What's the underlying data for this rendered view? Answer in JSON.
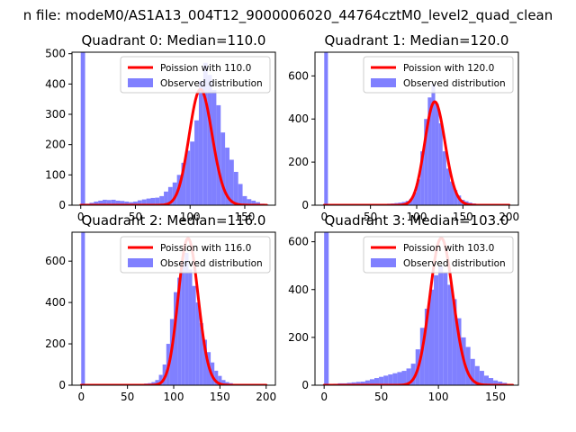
{
  "figure": {
    "suptitle": "n file: modeM0/AS1A13_004T12_9000006020_44764cztM0_level2_quad_clean"
  },
  "chart_data": [
    {
      "type": "bar+line",
      "title": "Quadrant 0: Median=110.0",
      "xlim": [
        -8,
        178
      ],
      "ylim": [
        0,
        505
      ],
      "xticks": [
        0,
        50,
        100,
        150
      ],
      "yticks": [
        0,
        100,
        200,
        300,
        400,
        500
      ],
      "legend": {
        "placement": "top-right",
        "entries": [
          "Poission with 110.0",
          "Observed distribution"
        ]
      },
      "line": {
        "name": "Poission with 110.0",
        "color": "#ff0000",
        "mean": 110.0,
        "peak": 382,
        "x_range": [
          0,
          170
        ]
      },
      "hist": {
        "name": "Observed distribution",
        "color": "#8080ff",
        "edges": [
          0,
          4,
          8,
          12,
          16,
          20,
          24,
          28,
          32,
          36,
          40,
          44,
          48,
          52,
          56,
          60,
          64,
          68,
          72,
          76,
          80,
          84,
          88,
          92,
          96,
          100,
          104,
          108,
          112,
          116,
          120,
          124,
          128,
          132,
          136,
          140,
          144,
          148,
          152,
          156,
          160,
          164,
          168,
          172
        ],
        "counts": [
          505,
          5,
          8,
          12,
          15,
          18,
          17,
          18,
          15,
          14,
          12,
          10,
          12,
          16,
          19,
          22,
          24,
          25,
          30,
          45,
          60,
          75,
          100,
          140,
          180,
          210,
          280,
          410,
          470,
          430,
          380,
          330,
          240,
          190,
          150,
          110,
          70,
          30,
          20,
          15,
          10,
          5,
          2
        ]
      }
    },
    {
      "type": "bar+line",
      "title": "Quadrant 1: Median=120.0",
      "xlim": [
        -10,
        210
      ],
      "ylim": [
        0,
        710
      ],
      "xticks": [
        0,
        50,
        100,
        150,
        200
      ],
      "yticks": [
        0,
        200,
        400,
        600
      ],
      "legend": {
        "placement": "top-right",
        "entries": [
          "Poission with 120.0",
          "Observed distribution"
        ]
      },
      "line": {
        "name": "Poission with 120.0",
        "color": "#ff0000",
        "mean": 120.0,
        "peak": 480,
        "x_range": [
          0,
          200
        ]
      },
      "hist": {
        "name": "Observed distribution",
        "color": "#8080ff",
        "edges": [
          0,
          4,
          8,
          12,
          16,
          20,
          24,
          28,
          32,
          36,
          40,
          44,
          48,
          52,
          56,
          60,
          64,
          68,
          72,
          76,
          80,
          84,
          88,
          92,
          96,
          100,
          104,
          108,
          112,
          116,
          120,
          124,
          128,
          132,
          136,
          140,
          144,
          148,
          152,
          156,
          160,
          164,
          168,
          172,
          176,
          180,
          184,
          188,
          192,
          196,
          200
        ],
        "counts": [
          710,
          3,
          3,
          3,
          3,
          3,
          3,
          3,
          3,
          3,
          3,
          3,
          4,
          4,
          5,
          5,
          6,
          7,
          8,
          10,
          12,
          15,
          20,
          30,
          60,
          120,
          250,
          400,
          500,
          560,
          470,
          380,
          250,
          170,
          110,
          70,
          45,
          25,
          18,
          12,
          8,
          6,
          5,
          4,
          3,
          3,
          3,
          3,
          3,
          3
        ]
      }
    },
    {
      "type": "bar+line",
      "title": "Quadrant 2: Median=116.0",
      "xlim": [
        -10,
        210
      ],
      "ylim": [
        0,
        740
      ],
      "xticks": [
        0,
        50,
        100,
        150,
        200
      ],
      "yticks": [
        0,
        200,
        400,
        600
      ],
      "legend": {
        "placement": "top-right",
        "entries": [
          "Poission with 116.0",
          "Observed distribution"
        ]
      },
      "line": {
        "name": "Poission with 116.0",
        "color": "#ff0000",
        "mean": 116.0,
        "peak": 710,
        "x_range": [
          0,
          200
        ]
      },
      "hist": {
        "name": "Observed distribution",
        "color": "#8080ff",
        "edges": [
          0,
          4,
          8,
          12,
          16,
          20,
          24,
          28,
          32,
          36,
          40,
          44,
          48,
          52,
          56,
          60,
          64,
          68,
          72,
          76,
          80,
          84,
          88,
          92,
          96,
          100,
          104,
          108,
          112,
          116,
          120,
          124,
          128,
          132,
          136,
          140,
          144,
          148,
          152,
          156,
          160,
          164,
          168,
          172,
          176,
          180,
          184,
          188,
          192,
          196,
          200
        ],
        "counts": [
          740,
          3,
          3,
          3,
          3,
          3,
          3,
          3,
          3,
          3,
          3,
          3,
          3,
          3,
          4,
          5,
          6,
          8,
          10,
          15,
          25,
          50,
          100,
          200,
          320,
          450,
          520,
          600,
          640,
          560,
          480,
          400,
          300,
          220,
          160,
          110,
          70,
          45,
          25,
          15,
          10,
          6,
          4,
          3,
          3,
          3,
          3,
          3,
          3,
          3
        ]
      }
    },
    {
      "type": "bar+line",
      "title": "Quadrant 3: Median=103.0",
      "xlim": [
        -8,
        170
      ],
      "ylim": [
        0,
        640
      ],
      "xticks": [
        0,
        50,
        100,
        150
      ],
      "yticks": [
        0,
        200,
        400,
        600
      ],
      "legend": {
        "placement": "top-right",
        "entries": [
          "Poission with 103.0",
          "Observed distribution"
        ]
      },
      "line": {
        "name": "Poission with 103.0",
        "color": "#ff0000",
        "mean": 103.0,
        "peak": 615,
        "x_range": [
          0,
          165
        ]
      },
      "hist": {
        "name": "Observed distribution",
        "color": "#8080ff",
        "edges": [
          0,
          4,
          8,
          12,
          16,
          20,
          24,
          28,
          32,
          36,
          40,
          44,
          48,
          52,
          56,
          60,
          64,
          68,
          72,
          76,
          80,
          84,
          88,
          92,
          96,
          100,
          104,
          108,
          112,
          116,
          120,
          124,
          128,
          132,
          136,
          140,
          144,
          148,
          152,
          156,
          160,
          164
        ],
        "counts": [
          640,
          5,
          6,
          8,
          8,
          10,
          12,
          14,
          15,
          20,
          25,
          30,
          35,
          40,
          45,
          50,
          55,
          60,
          70,
          90,
          150,
          240,
          320,
          400,
          460,
          500,
          470,
          420,
          360,
          280,
          200,
          160,
          110,
          80,
          60,
          40,
          30,
          20,
          15,
          10,
          5
        ]
      }
    }
  ]
}
